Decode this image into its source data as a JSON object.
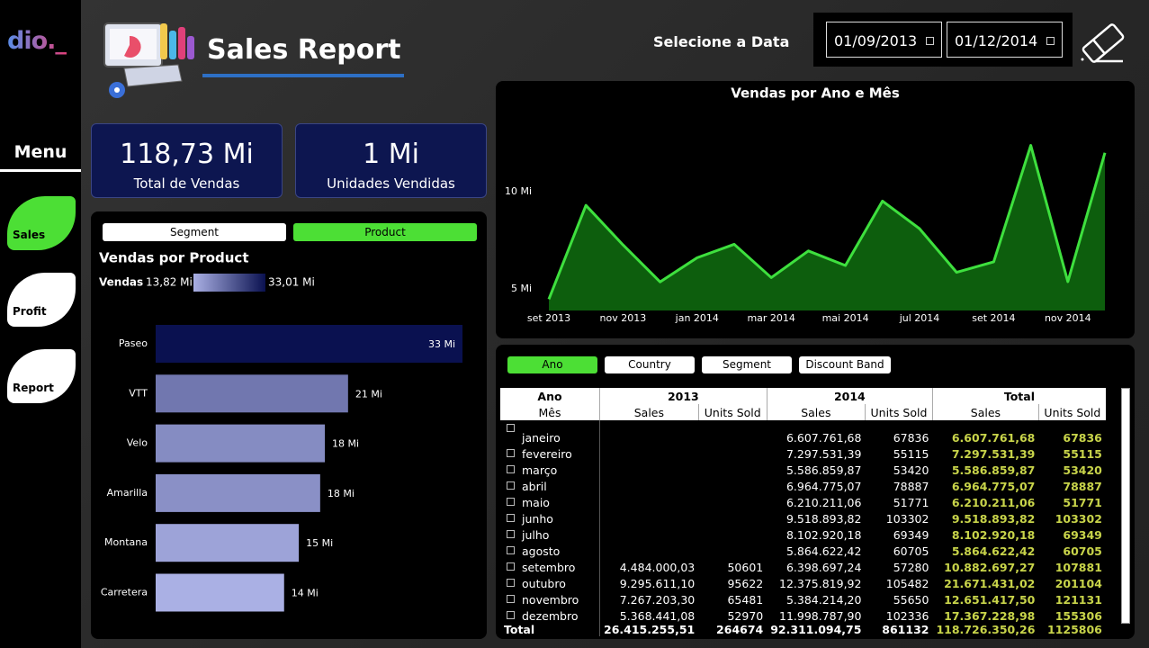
{
  "sidebar": {
    "logo": "dio._",
    "menu_title": "Menu",
    "buttons": [
      "Sales",
      "Profit",
      "Report"
    ],
    "active_button": 0
  },
  "header": {
    "title": "Sales Report",
    "date_label": "Selecione a Data",
    "date_start": "01/09/2013",
    "date_end": "01/12/2014"
  },
  "kpis": [
    {
      "value": "118,73 Mi",
      "label": "Total de Vendas"
    },
    {
      "value": "1 Mi",
      "label": "Unidades Vendidas"
    }
  ],
  "product_panel": {
    "toggles": [
      "Segment",
      "Product"
    ],
    "active_toggle": 1
  },
  "chart_data": [
    {
      "type": "hbar",
      "title": "Vendas por Product",
      "categories": [
        "Paseo",
        "VTT",
        "Velo",
        "Amarilla",
        "Montana",
        "Carretera"
      ],
      "values": [
        33.01,
        20.7,
        18.2,
        17.7,
        15.4,
        13.82
      ],
      "value_labels": [
        "33 Mi",
        "21 Mi",
        "18 Mi",
        "18 Mi",
        "15 Mi",
        "14 Mi"
      ],
      "legend": {
        "title": "Vendas",
        "min": 13.82,
        "max": 33.01,
        "min_label": "13,82 Mi",
        "max_label": "33,01 Mi",
        "colors": [
          "#aab0e4",
          "#0a1150"
        ]
      }
    },
    {
      "type": "area",
      "title": "Vendas por Ano e Mês",
      "categories": [
        "set 2013",
        null,
        "nov 2013",
        null,
        "jan 2014",
        null,
        "mar 2014",
        null,
        "mai 2014",
        null,
        "jul 2014",
        null,
        "set 2014",
        null,
        "nov 2014",
        null
      ],
      "values": [
        4.48,
        9.3,
        7.27,
        5.37,
        6.61,
        7.3,
        5.59,
        6.96,
        6.21,
        9.52,
        8.1,
        5.86,
        6.4,
        12.38,
        5.38,
        12.0
      ],
      "color": "#3ee03e",
      "fill": "#0d5e0d",
      "ylim": [
        3.9,
        14.3
      ],
      "yticks": [
        {
          "value": 5,
          "label": "5 Mi"
        },
        {
          "value": 10,
          "label": "10 Mi"
        }
      ]
    }
  ],
  "table_panel": {
    "filters": [
      "Ano",
      "Country",
      "Segment",
      "Discount Band"
    ],
    "active_filter": 0,
    "header_top": [
      "Ano",
      "2013",
      "2014",
      "Total"
    ],
    "header_bottom": [
      "Mês",
      "Sales",
      "Units Sold",
      "Sales",
      "Units Sold",
      "Sales",
      "Units Sold"
    ],
    "rows": [
      [
        "janeiro",
        null,
        null,
        "6.607.761,68",
        "67836",
        "6.607.761,68",
        "67836"
      ],
      [
        "fevereiro",
        null,
        null,
        "7.297.531,39",
        "55115",
        "7.297.531,39",
        "55115"
      ],
      [
        "março",
        null,
        null,
        "5.586.859,87",
        "53420",
        "5.586.859,87",
        "53420"
      ],
      [
        "abril",
        null,
        null,
        "6.964.775,07",
        "78887",
        "6.964.775,07",
        "78887"
      ],
      [
        "maio",
        null,
        null,
        "6.210.211,06",
        "51771",
        "6.210.211,06",
        "51771"
      ],
      [
        "junho",
        null,
        null,
        "9.518.893,82",
        "103302",
        "9.518.893,82",
        "103302"
      ],
      [
        "julho",
        null,
        null,
        "8.102.920,18",
        "69349",
        "8.102.920,18",
        "69349"
      ],
      [
        "agosto",
        null,
        null,
        "5.864.622,42",
        "60705",
        "5.864.622,42",
        "60705"
      ],
      [
        "setembro",
        "4.484.000,03",
        "50601",
        "6.398.697,24",
        "57280",
        "10.882.697,27",
        "107881"
      ],
      [
        "outubro",
        "9.295.611,10",
        "95622",
        "12.375.819,92",
        "105482",
        "21.671.431,02",
        "201104"
      ],
      [
        "novembro",
        "7.267.203,30",
        "65481",
        "5.384.214,20",
        "55650",
        "12.651.417,50",
        "121131"
      ],
      [
        "dezembro",
        "5.368.441,08",
        "52970",
        "11.998.787,90",
        "102336",
        "17.367.228,98",
        "155306"
      ]
    ],
    "total": [
      "Total",
      "26.415.255,51",
      "264674",
      "92.311.094,75",
      "861132",
      "118.726.350,26",
      "1125806"
    ]
  }
}
